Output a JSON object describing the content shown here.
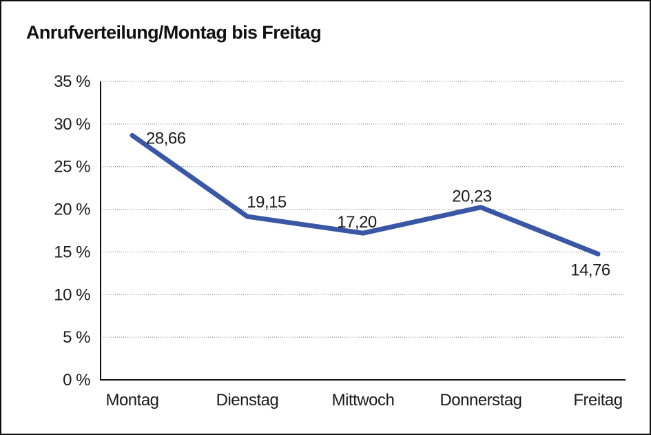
{
  "chart_data": {
    "type": "line",
    "title": "Anrufverteilung/Montag bis Freitag",
    "categories": [
      "Montag",
      "Dienstag",
      "Mittwoch",
      "Donnerstag",
      "Freitag"
    ],
    "series": [
      {
        "name": "Anrufverteilung",
        "values": [
          28.66,
          19.15,
          17.2,
          20.23,
          14.76
        ]
      }
    ],
    "value_labels": [
      "28,66",
      "19,15",
      "17,20",
      "20,23",
      "14,76"
    ],
    "y_ticks": [
      0,
      5,
      10,
      15,
      20,
      25,
      30,
      35
    ],
    "y_tick_suffix": " %",
    "ylim": [
      0,
      35
    ],
    "xlabel": "",
    "ylabel": "",
    "grid": "horizontal-dotted",
    "legend": "none",
    "line_color": "#3A57A6",
    "text_color": "#1a1a1a",
    "axis_color": "#111111",
    "grid_color": "#777777"
  }
}
